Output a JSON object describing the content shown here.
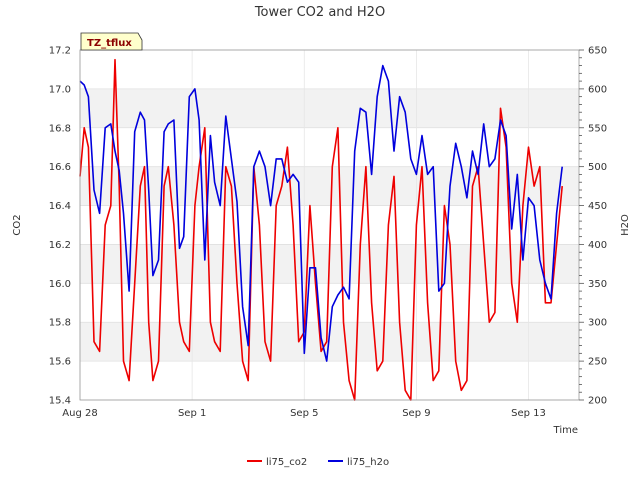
{
  "chart_data": {
    "type": "line",
    "title": "Tower CO2 and H2O",
    "badge": "TZ_tflux",
    "xlabel": "Time",
    "ylabel_left": "CO2",
    "ylabel_right": "H2O",
    "x_tick_labels": [
      "Aug 28",
      "Sep 1",
      "Sep 5",
      "Sep 9",
      "Sep 13"
    ],
    "x_tick_days": [
      0,
      4,
      8,
      12,
      16
    ],
    "xlim_days": [
      0,
      17.8
    ],
    "ylim_left": [
      15.4,
      17.2
    ],
    "ylim_right": [
      200,
      650
    ],
    "y_left_ticks": [
      "15.4",
      "15.6",
      "15.8",
      "16.0",
      "16.2",
      "16.4",
      "16.6",
      "16.8",
      "17.0",
      "17.2"
    ],
    "y_right_ticks": [
      "200",
      "250",
      "300",
      "350",
      "400",
      "450",
      "500",
      "550",
      "600",
      "650"
    ],
    "grid": true,
    "legend_position": "bottom",
    "colors": {
      "li75_co2": "#ee0000",
      "li75_h2o": "#0000dd",
      "band": "#f2f2f2"
    },
    "series": [
      {
        "name": "li75_co2",
        "axis": "left",
        "x": [
          0.0,
          0.15,
          0.3,
          0.5,
          0.7,
          0.9,
          1.1,
          1.25,
          1.4,
          1.55,
          1.75,
          1.95,
          2.15,
          2.3,
          2.45,
          2.6,
          2.8,
          3.0,
          3.15,
          3.35,
          3.55,
          3.7,
          3.9,
          4.1,
          4.25,
          4.45,
          4.65,
          4.8,
          5.0,
          5.2,
          5.4,
          5.6,
          5.8,
          6.0,
          6.2,
          6.4,
          6.6,
          6.8,
          7.0,
          7.2,
          7.4,
          7.6,
          7.8,
          8.0,
          8.2,
          8.4,
          8.6,
          8.8,
          9.0,
          9.2,
          9.4,
          9.6,
          9.8,
          10.0,
          10.2,
          10.4,
          10.6,
          10.8,
          11.0,
          11.2,
          11.4,
          11.6,
          11.8,
          12.0,
          12.2,
          12.4,
          12.6,
          12.8,
          13.0,
          13.2,
          13.4,
          13.6,
          13.8,
          14.0,
          14.2,
          14.4,
          14.6,
          14.8,
          15.0,
          15.2,
          15.4,
          15.6,
          15.8,
          16.0,
          16.2,
          16.4,
          16.6,
          16.8,
          17.0,
          17.2
        ],
        "values": [
          16.55,
          16.8,
          16.7,
          15.7,
          15.65,
          16.3,
          16.4,
          17.15,
          16.5,
          15.6,
          15.5,
          16.0,
          16.5,
          16.6,
          15.8,
          15.5,
          15.6,
          16.5,
          16.6,
          16.3,
          15.8,
          15.7,
          15.65,
          16.4,
          16.6,
          16.8,
          15.8,
          15.7,
          15.65,
          16.6,
          16.5,
          16.0,
          15.6,
          15.5,
          16.6,
          16.3,
          15.7,
          15.6,
          16.4,
          16.5,
          16.7,
          16.3,
          15.7,
          15.75,
          16.4,
          16.0,
          15.65,
          15.7,
          16.6,
          16.8,
          15.8,
          15.5,
          15.4,
          16.2,
          16.6,
          15.9,
          15.55,
          15.6,
          16.3,
          16.55,
          15.8,
          15.45,
          15.4,
          16.3,
          16.6,
          15.9,
          15.5,
          15.55,
          16.4,
          16.2,
          15.6,
          15.45,
          15.5,
          16.5,
          16.6,
          16.2,
          15.8,
          15.85,
          16.9,
          16.7,
          16.0,
          15.8,
          16.4,
          16.7,
          16.5,
          16.6,
          15.9,
          15.9,
          16.2,
          16.5
        ]
      },
      {
        "name": "li75_h2o",
        "axis": "right",
        "x": [
          0.0,
          0.15,
          0.3,
          0.5,
          0.7,
          0.9,
          1.1,
          1.25,
          1.4,
          1.55,
          1.75,
          1.95,
          2.15,
          2.3,
          2.45,
          2.6,
          2.8,
          3.0,
          3.15,
          3.35,
          3.55,
          3.7,
          3.9,
          4.1,
          4.25,
          4.45,
          4.65,
          4.8,
          5.0,
          5.2,
          5.4,
          5.6,
          5.8,
          6.0,
          6.2,
          6.4,
          6.6,
          6.8,
          7.0,
          7.2,
          7.4,
          7.6,
          7.8,
          8.0,
          8.2,
          8.4,
          8.6,
          8.8,
          9.0,
          9.2,
          9.4,
          9.6,
          9.8,
          10.0,
          10.2,
          10.4,
          10.6,
          10.8,
          11.0,
          11.2,
          11.4,
          11.6,
          11.8,
          12.0,
          12.2,
          12.4,
          12.6,
          12.8,
          13.0,
          13.2,
          13.4,
          13.6,
          13.8,
          14.0,
          14.2,
          14.4,
          14.6,
          14.8,
          15.0,
          15.2,
          15.4,
          15.6,
          15.8,
          16.0,
          16.2,
          16.4,
          16.6,
          16.8,
          17.0,
          17.2
        ],
        "values": [
          610,
          605,
          590,
          470,
          440,
          550,
          555,
          520,
          495,
          440,
          340,
          545,
          570,
          560,
          470,
          360,
          380,
          545,
          555,
          560,
          395,
          410,
          590,
          600,
          560,
          380,
          540,
          480,
          450,
          565,
          510,
          455,
          320,
          270,
          500,
          520,
          500,
          450,
          510,
          510,
          480,
          490,
          480,
          260,
          370,
          370,
          280,
          250,
          320,
          335,
          345,
          330,
          520,
          575,
          570,
          490,
          590,
          630,
          610,
          520,
          590,
          570,
          510,
          490,
          540,
          490,
          500,
          340,
          350,
          475,
          530,
          500,
          460,
          520,
          490,
          555,
          500,
          510,
          560,
          540,
          420,
          490,
          380,
          460,
          450,
          380,
          350,
          330,
          440,
          500
        ]
      }
    ]
  }
}
